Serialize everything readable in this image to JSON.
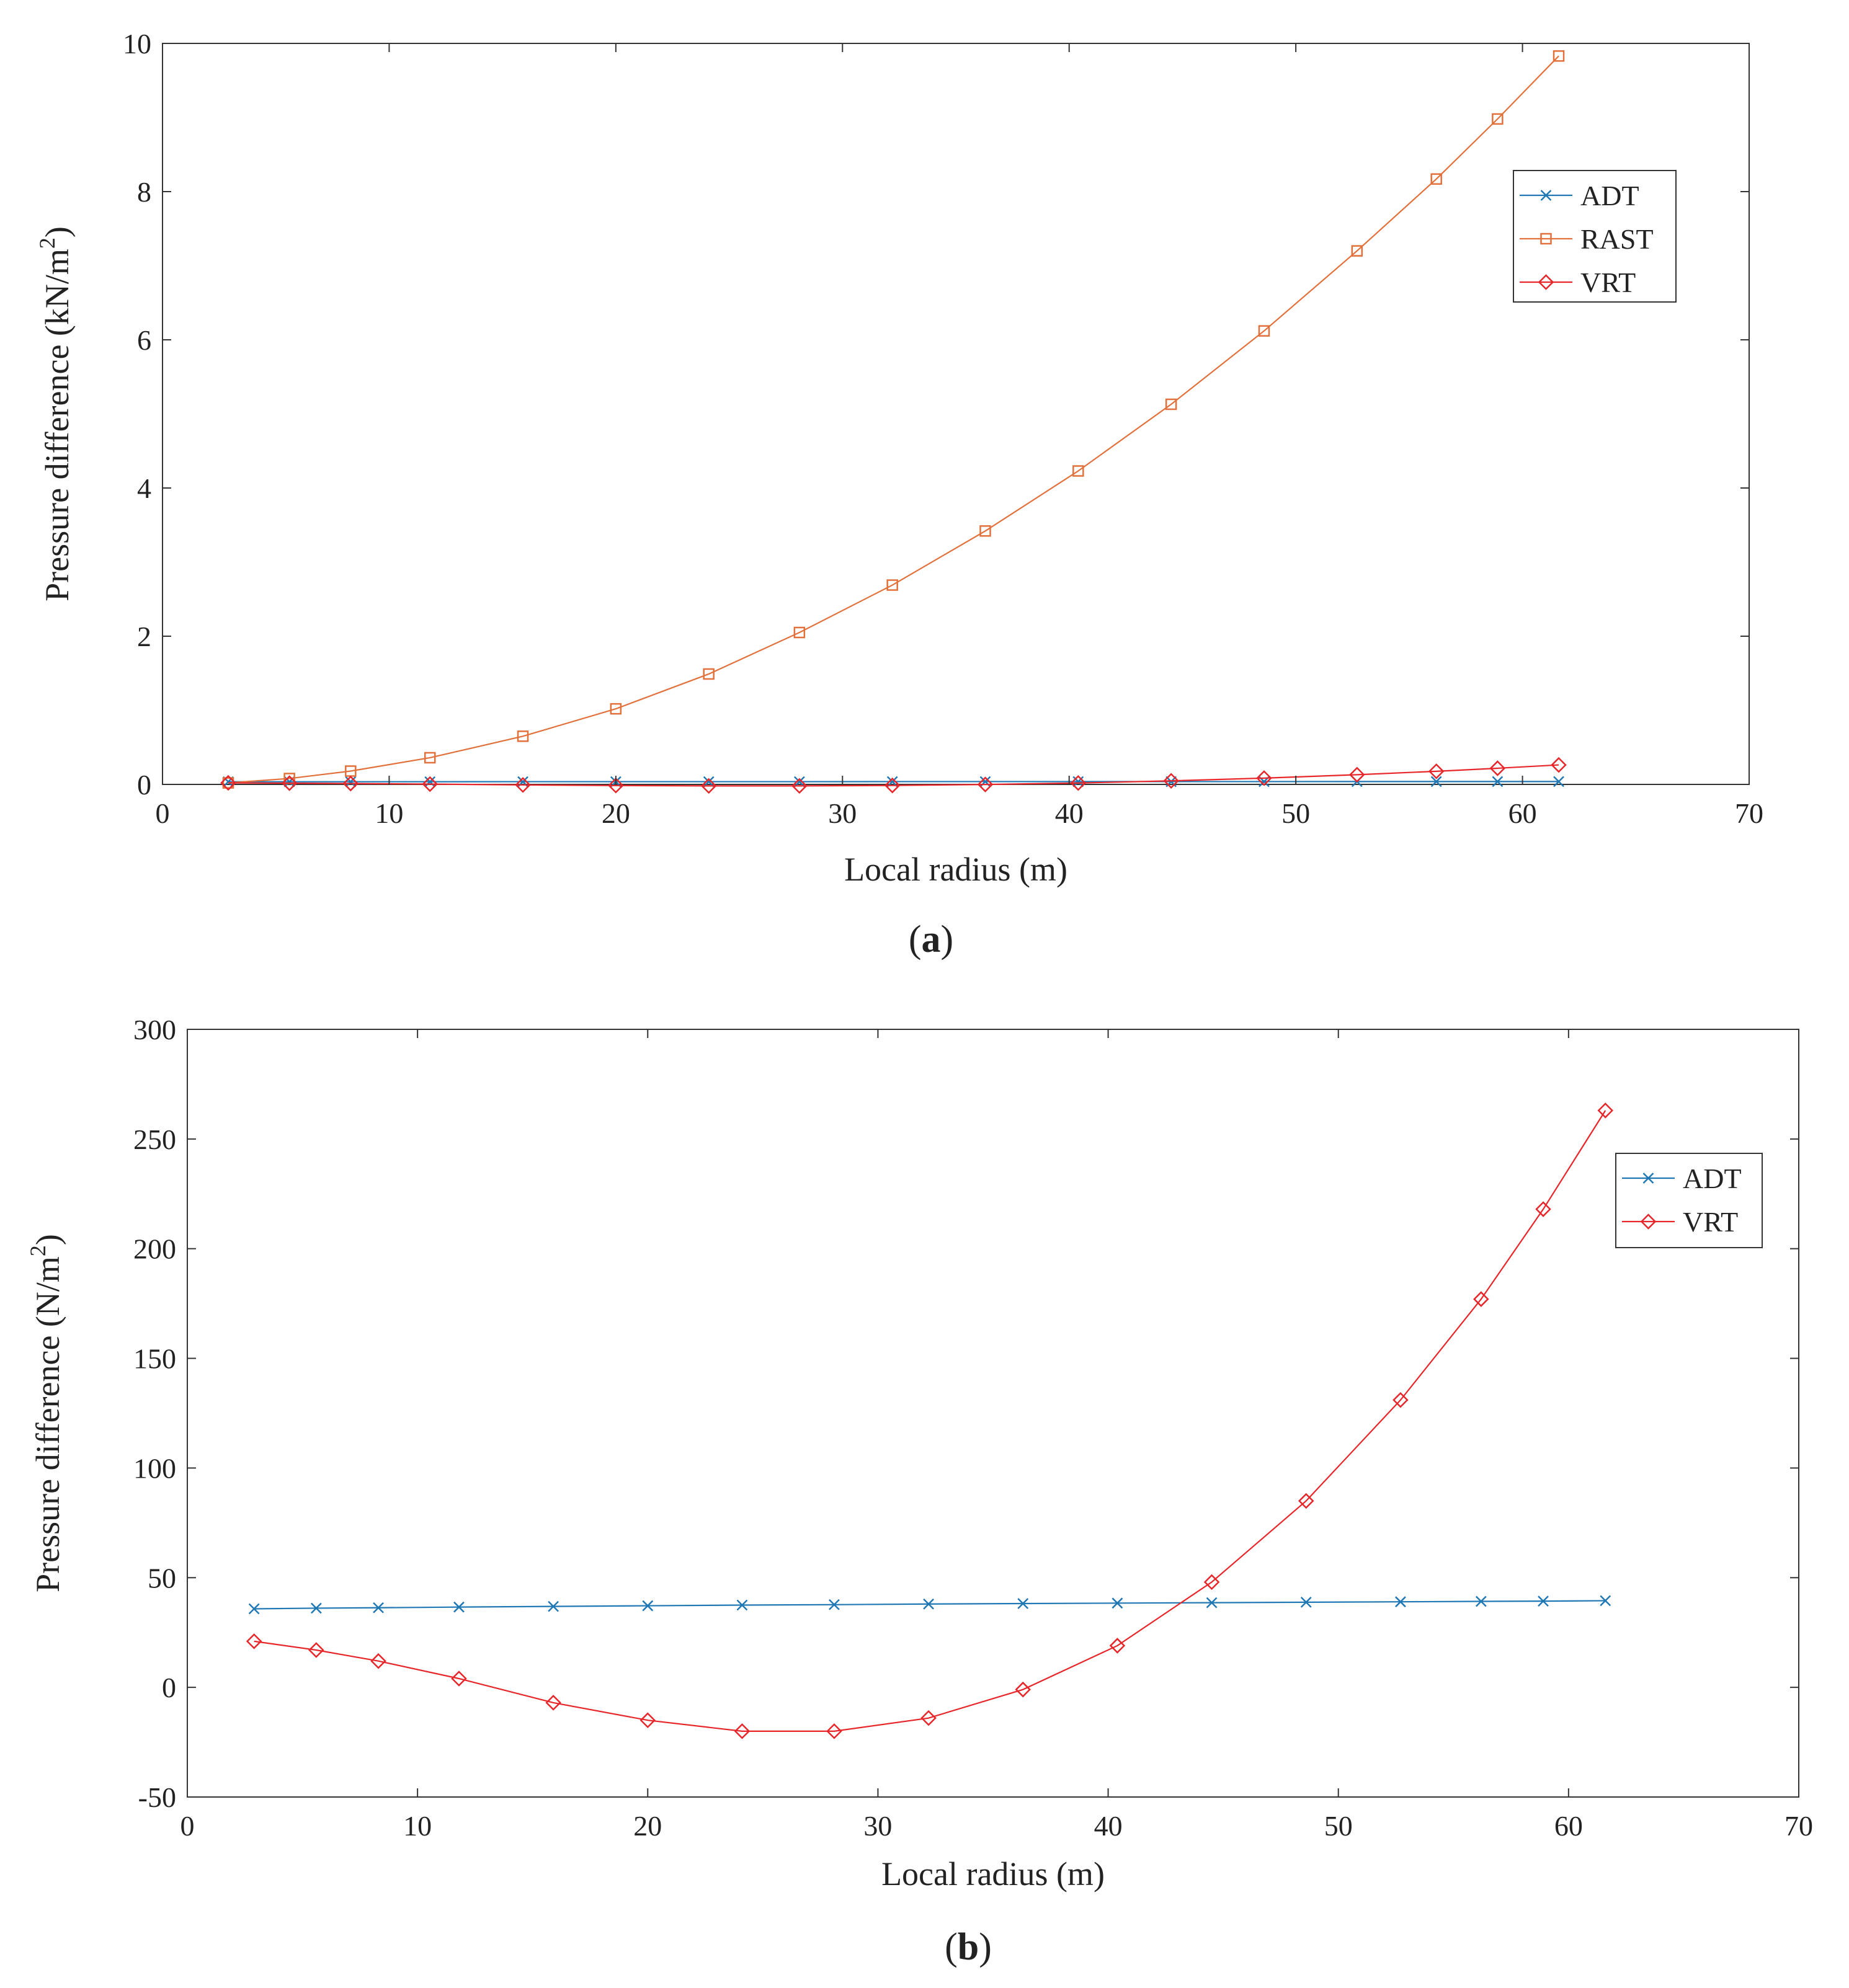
{
  "figure": {
    "panels": [
      "a",
      "b"
    ]
  },
  "colors": {
    "ADT": "#1f77b4",
    "RAST": "#e2703a",
    "VRT": "#e8262a",
    "axis": "#333333"
  },
  "chart_data": [
    {
      "type": "line",
      "panel_label": "a",
      "xlabel": "Local radius (m)",
      "ylabel": "Pressure difference (kN/m",
      "ylabel_sup": "2",
      "ylabel_end": ")",
      "xlim": [
        0,
        70
      ],
      "ylim": [
        0,
        10
      ],
      "xticks": [
        0,
        10,
        20,
        30,
        40,
        50,
        60,
        70
      ],
      "yticks": [
        0,
        2,
        4,
        6,
        8,
        10
      ],
      "grid": false,
      "legend_position": "top-right",
      "x": [
        2.9,
        5.6,
        8.3,
        11.8,
        15.9,
        20.0,
        24.1,
        28.1,
        32.2,
        36.3,
        40.4,
        44.5,
        48.6,
        52.7,
        56.2,
        58.9,
        61.6
      ],
      "series": [
        {
          "name": "ADT",
          "marker": "x",
          "values": [
            0.036,
            0.036,
            0.036,
            0.036,
            0.037,
            0.037,
            0.037,
            0.037,
            0.038,
            0.038,
            0.038,
            0.038,
            0.038,
            0.039,
            0.039,
            0.039,
            0.039
          ]
        },
        {
          "name": "RAST",
          "marker": "square",
          "values": [
            0.02,
            0.08,
            0.18,
            0.36,
            0.65,
            1.02,
            1.49,
            2.05,
            2.69,
            3.42,
            4.23,
            5.13,
            6.12,
            7.2,
            8.17,
            8.98,
            9.83
          ]
        },
        {
          "name": "VRT",
          "marker": "diamond",
          "values": [
            0.021,
            0.017,
            0.012,
            0.004,
            -0.007,
            -0.015,
            -0.02,
            -0.02,
            -0.014,
            -0.001,
            0.019,
            0.048,
            0.085,
            0.131,
            0.177,
            0.218,
            0.263
          ]
        }
      ]
    },
    {
      "type": "line",
      "panel_label": "b",
      "xlabel": "Local radius (m)",
      "ylabel": "Pressure difference (N/m",
      "ylabel_sup": "2",
      "ylabel_end": ")",
      "xlim": [
        0,
        70
      ],
      "ylim": [
        -50,
        300
      ],
      "xticks": [
        0,
        10,
        20,
        30,
        40,
        50,
        60,
        70
      ],
      "yticks": [
        -50,
        0,
        50,
        100,
        150,
        200,
        250,
        300
      ],
      "grid": false,
      "legend_position": "top-right",
      "x": [
        2.9,
        5.6,
        8.3,
        11.8,
        15.9,
        20.0,
        24.1,
        28.1,
        32.2,
        36.3,
        40.4,
        44.5,
        48.6,
        52.7,
        56.2,
        58.9,
        61.6
      ],
      "series": [
        {
          "name": "ADT",
          "marker": "x",
          "values": [
            35.8,
            36.1,
            36.3,
            36.6,
            36.9,
            37.2,
            37.5,
            37.7,
            38.0,
            38.2,
            38.4,
            38.6,
            38.8,
            39.0,
            39.2,
            39.3,
            39.5
          ]
        },
        {
          "name": "VRT",
          "marker": "diamond",
          "values": [
            21,
            17,
            12,
            4,
            -7,
            -15,
            -20,
            -20,
            -14,
            -1,
            19,
            48,
            85,
            131,
            177,
            218,
            263
          ]
        }
      ]
    }
  ]
}
